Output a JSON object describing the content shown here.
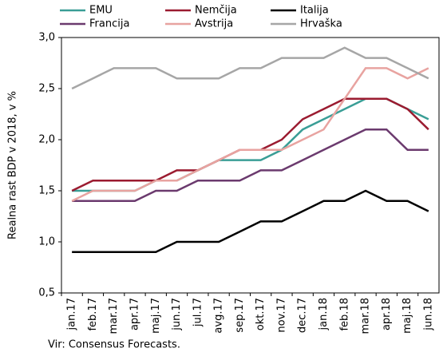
{
  "chart_data": {
    "type": "line",
    "y_label": "Realna rast BDP v 2018, v %",
    "source": "Vir: Consensus Forecasts.",
    "categories": [
      "jan.17",
      "feb.17",
      "mar.17",
      "apr.17",
      "maj.17",
      "jun.17",
      "jul.17",
      "avg.17",
      "sep.17",
      "okt.17",
      "nov.17",
      "dec.17",
      "jan.18",
      "feb.18",
      "mar.18",
      "apr.18",
      "maj.18",
      "jun.18"
    ],
    "series": [
      {
        "name": "EMU",
        "color": "#3a9e96",
        "values": [
          1.5,
          1.5,
          1.5,
          1.5,
          1.6,
          1.6,
          1.7,
          1.8,
          1.8,
          1.8,
          1.9,
          2.1,
          2.2,
          2.3,
          2.4,
          2.4,
          2.3,
          2.2
        ]
      },
      {
        "name": "Nemčija",
        "color": "#9b1b30",
        "values": [
          1.5,
          1.6,
          1.6,
          1.6,
          1.6,
          1.7,
          1.7,
          1.8,
          1.9,
          1.9,
          2.0,
          2.2,
          2.3,
          2.4,
          2.4,
          2.4,
          2.3,
          2.1
        ]
      },
      {
        "name": "Italija",
        "color": "#000000",
        "values": [
          0.9,
          0.9,
          0.9,
          0.9,
          0.9,
          1.0,
          1.0,
          1.0,
          1.1,
          1.2,
          1.2,
          1.3,
          1.4,
          1.4,
          1.5,
          1.4,
          1.4,
          1.3
        ]
      },
      {
        "name": "Francija",
        "color": "#6b3a6e",
        "values": [
          1.4,
          1.4,
          1.4,
          1.4,
          1.5,
          1.5,
          1.6,
          1.6,
          1.6,
          1.7,
          1.7,
          1.8,
          1.9,
          2.0,
          2.1,
          2.1,
          1.9,
          1.9
        ]
      },
      {
        "name": "Avstrija",
        "color": "#e8a3a0",
        "values": [
          1.4,
          1.5,
          1.5,
          1.5,
          1.6,
          1.6,
          1.7,
          1.8,
          1.9,
          1.9,
          1.9,
          2.0,
          2.1,
          2.4,
          2.7,
          2.7,
          2.6,
          2.7
        ]
      },
      {
        "name": "Hrvaška",
        "color": "#a6a6a6",
        "values": [
          2.5,
          2.6,
          2.7,
          2.7,
          2.7,
          2.6,
          2.6,
          2.6,
          2.7,
          2.7,
          2.8,
          2.8,
          2.8,
          2.9,
          2.8,
          2.8,
          2.7,
          2.6
        ]
      }
    ],
    "ylim": [
      0.5,
      3.0
    ],
    "yticks": [
      {
        "value": 0.5,
        "label": "0,5"
      },
      {
        "value": 1.0,
        "label": "1,0"
      },
      {
        "value": 1.5,
        "label": "1,5"
      },
      {
        "value": 2.0,
        "label": "2,0"
      },
      {
        "value": 2.5,
        "label": "2,5"
      },
      {
        "value": 3.0,
        "label": "3,0"
      }
    ],
    "grid": false
  }
}
